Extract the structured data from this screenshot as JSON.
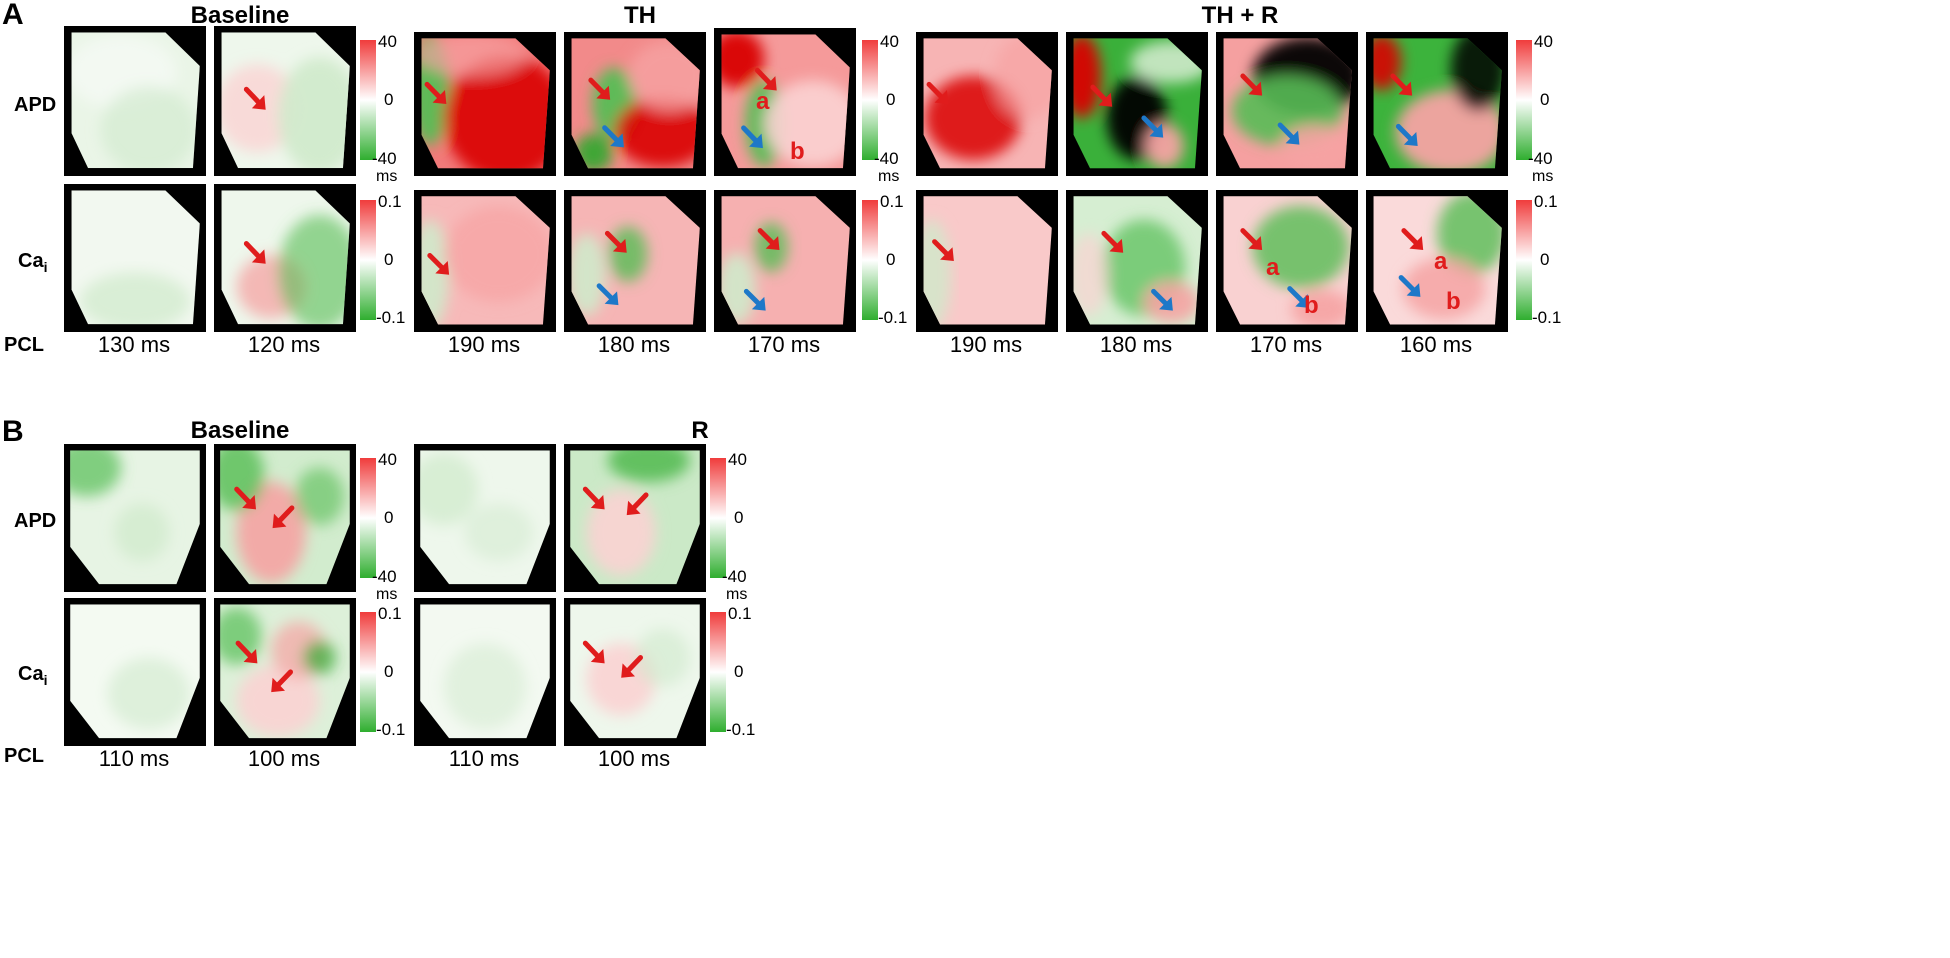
{
  "panelA": {
    "letter": "A",
    "groups": [
      "Baseline",
      "TH",
      "TH + R"
    ],
    "rows": {
      "apd": "APD",
      "ca": "Ca",
      "ca_sub": "i",
      "pcl": "PCL"
    },
    "pcl_values": [
      "130 ms",
      "120 ms",
      "190 ms",
      "180 ms",
      "170 ms",
      "190 ms",
      "180 ms",
      "170 ms",
      "160 ms"
    ],
    "annotations": {
      "a": "a",
      "b": "b"
    }
  },
  "panelB": {
    "letter": "B",
    "groups": [
      "Baseline",
      "R"
    ],
    "rows": {
      "apd": "APD",
      "ca": "Ca",
      "ca_sub": "i",
      "pcl": "PCL"
    },
    "pcl_values": [
      "110 ms",
      "100 ms",
      "110 ms",
      "100 ms"
    ]
  },
  "colorbar": {
    "apd": {
      "max": "40",
      "mid": "0",
      "min": "-40",
      "unit": "ms"
    },
    "ca": {
      "max": "0.1",
      "mid": "0",
      "min": "-0.1"
    }
  },
  "colors": {
    "positive": "#e83a3a",
    "negative": "#3cb33c",
    "arrow_red": "#e01c1c",
    "arrow_blue": "#1e78c8"
  },
  "icons": {
    "red_arrow": "red-arrow-icon",
    "blue_arrow": "blue-arrow-icon"
  }
}
